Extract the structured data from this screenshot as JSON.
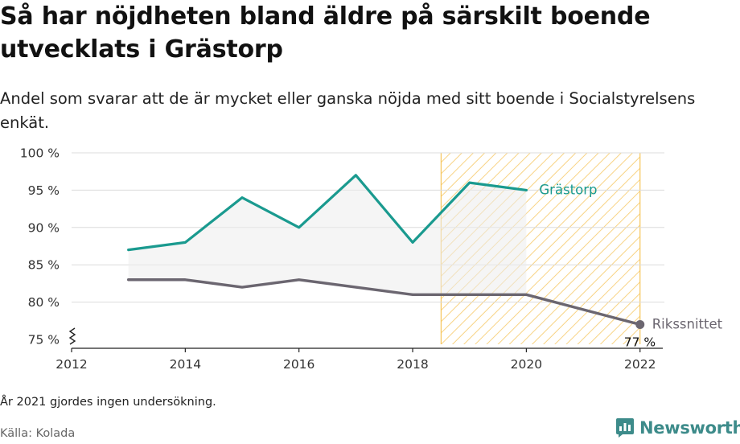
{
  "title": "Så har nöjdheten bland äldre på särskilt boende utvecklats i Grästorp",
  "subtitle": "Andel som svarar att de är mycket eller ganska nöjda med sitt boende i Socialstyrelsens enkät.",
  "note": "År 2021 gjordes ingen undersökning.",
  "source": "Källa: Kolada",
  "brand": "Newsworthy",
  "colors": {
    "grastorp": "#1a9a8f",
    "riket": "#6b6670",
    "highlight": "#f6c55a"
  },
  "chart_data": {
    "type": "line",
    "x_ticks": [
      "2012",
      "2014",
      "2016",
      "2018",
      "2020",
      "2022"
    ],
    "y_ticks": [
      "75 %",
      "80 %",
      "85 %",
      "90 %",
      "95 %",
      "100 %"
    ],
    "xlim": [
      2012,
      2022.4
    ],
    "ylim": [
      75,
      100
    ],
    "y_axis_break": true,
    "highlight_range": [
      2018.5,
      2022
    ],
    "series": [
      {
        "name": "Grästorp",
        "x": [
          2013,
          2014,
          2015,
          2016,
          2017,
          2018,
          2019,
          2020
        ],
        "values": [
          87,
          88,
          94,
          90,
          97,
          88,
          96,
          95
        ]
      },
      {
        "name": "Rikssnittet",
        "x": [
          2013,
          2014,
          2015,
          2016,
          2017,
          2018,
          2019,
          2020,
          2022
        ],
        "values": [
          83,
          83,
          82,
          83,
          82,
          81,
          81,
          81,
          77
        ]
      }
    ],
    "last_value_label": "77 %"
  }
}
